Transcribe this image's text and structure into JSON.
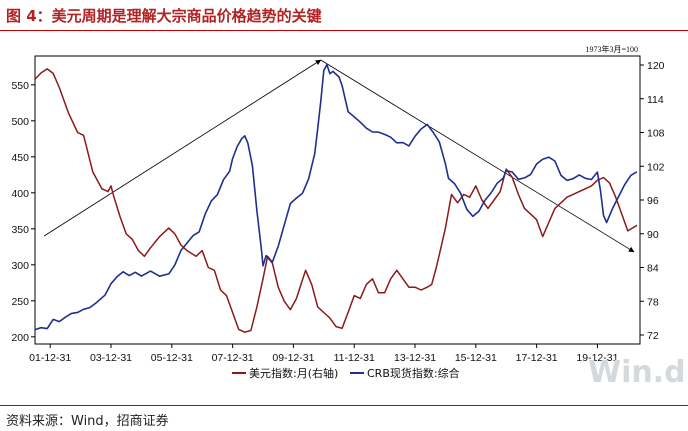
{
  "title": "图 4：美元周期是理解大宗商品价格趋势的关键",
  "source": "资料来源：Wind，招商证券",
  "watermark": "Win.d",
  "chart_data": {
    "type": "line",
    "base_note": "1973年3月=100",
    "x_ticks": [
      "01-12-31",
      "03-12-31",
      "05-12-31",
      "07-12-31",
      "09-12-31",
      "11-12-31",
      "13-12-31",
      "15-12-31",
      "17-12-31",
      "19-12-31"
    ],
    "x_range": [
      2001.5,
      2021.4
    ],
    "y_left": {
      "ticks": [
        200,
        250,
        300,
        350,
        400,
        450,
        500,
        550
      ],
      "range": [
        190,
        590
      ]
    },
    "y_right": {
      "ticks": [
        72,
        78,
        84,
        90,
        96,
        102,
        108,
        114,
        120
      ],
      "range": [
        70.4,
        121.6
      ]
    },
    "series": [
      {
        "name": "美元指数:月(右轴)",
        "axis": "right",
        "color": "#8b1a1a",
        "points": [
          [
            2001.5,
            117.5
          ],
          [
            2001.7,
            118.6
          ],
          [
            2001.9,
            119.3
          ],
          [
            2002.1,
            118.5
          ],
          [
            2002.3,
            116.0
          ],
          [
            2002.6,
            111.5
          ],
          [
            2002.9,
            108.0
          ],
          [
            2003.1,
            107.5
          ],
          [
            2003.4,
            101.0
          ],
          [
            2003.7,
            98.0
          ],
          [
            2003.9,
            97.5
          ],
          [
            2004.0,
            98.5
          ],
          [
            2004.1,
            96.5
          ],
          [
            2004.3,
            93.0
          ],
          [
            2004.5,
            90.0
          ],
          [
            2004.7,
            89.0
          ],
          [
            2004.9,
            87.0
          ],
          [
            2005.1,
            86.0
          ],
          [
            2005.3,
            87.5
          ],
          [
            2005.6,
            89.5
          ],
          [
            2005.9,
            91.0
          ],
          [
            2006.1,
            90.0
          ],
          [
            2006.3,
            88.0
          ],
          [
            2006.5,
            87.0
          ],
          [
            2006.8,
            86.0
          ],
          [
            2007.0,
            87.0
          ],
          [
            2007.2,
            84.0
          ],
          [
            2007.4,
            83.5
          ],
          [
            2007.6,
            80.0
          ],
          [
            2007.8,
            79.0
          ],
          [
            2008.0,
            76.0
          ],
          [
            2008.2,
            73.0
          ],
          [
            2008.4,
            72.5
          ],
          [
            2008.6,
            72.8
          ],
          [
            2008.8,
            77.0
          ],
          [
            2009.0,
            82.0
          ],
          [
            2009.15,
            86.0
          ],
          [
            2009.3,
            85.0
          ],
          [
            2009.5,
            80.5
          ],
          [
            2009.7,
            78.0
          ],
          [
            2009.9,
            76.5
          ],
          [
            2010.1,
            78.5
          ],
          [
            2010.25,
            81.0
          ],
          [
            2010.4,
            83.5
          ],
          [
            2010.6,
            81.0
          ],
          [
            2010.8,
            77.0
          ],
          [
            2011.0,
            76.0
          ],
          [
            2011.2,
            75.0
          ],
          [
            2011.4,
            73.5
          ],
          [
            2011.6,
            73.2
          ],
          [
            2011.8,
            76.0
          ],
          [
            2012.0,
            79.0
          ],
          [
            2012.2,
            78.5
          ],
          [
            2012.4,
            81.0
          ],
          [
            2012.6,
            82.0
          ],
          [
            2012.8,
            79.5
          ],
          [
            2013.0,
            79.5
          ],
          [
            2013.2,
            82.0
          ],
          [
            2013.4,
            83.5
          ],
          [
            2013.6,
            82.0
          ],
          [
            2013.8,
            80.5
          ],
          [
            2014.0,
            80.5
          ],
          [
            2014.2,
            80.0
          ],
          [
            2014.4,
            80.5
          ],
          [
            2014.55,
            81.0
          ],
          [
            2014.7,
            84.0
          ],
          [
            2014.85,
            87.5
          ],
          [
            2015.0,
            91.0
          ],
          [
            2015.2,
            97.0
          ],
          [
            2015.4,
            95.5
          ],
          [
            2015.6,
            97.0
          ],
          [
            2015.8,
            96.5
          ],
          [
            2016.0,
            98.5
          ],
          [
            2016.2,
            96.0
          ],
          [
            2016.4,
            94.5
          ],
          [
            2016.6,
            96.0
          ],
          [
            2016.8,
            97.5
          ],
          [
            2017.0,
            101.5
          ],
          [
            2017.2,
            100.0
          ],
          [
            2017.4,
            97.0
          ],
          [
            2017.6,
            94.5
          ],
          [
            2017.8,
            93.5
          ],
          [
            2018.0,
            92.5
          ],
          [
            2018.2,
            89.5
          ],
          [
            2018.4,
            92.0
          ],
          [
            2018.6,
            94.5
          ],
          [
            2018.8,
            95.5
          ],
          [
            2019.0,
            96.5
          ],
          [
            2019.2,
            97.0
          ],
          [
            2019.4,
            97.5
          ],
          [
            2019.6,
            98.0
          ],
          [
            2019.8,
            98.5
          ],
          [
            2020.0,
            99.5
          ],
          [
            2020.2,
            100.0
          ],
          [
            2020.4,
            99.0
          ],
          [
            2020.6,
            96.5
          ],
          [
            2020.8,
            93.5
          ],
          [
            2021.0,
            90.5
          ],
          [
            2021.3,
            91.5
          ]
        ]
      },
      {
        "name": "CRB现货指数:综合",
        "axis": "left",
        "color": "#1f2f8f",
        "points": [
          [
            2001.5,
            210
          ],
          [
            2001.7,
            213
          ],
          [
            2001.9,
            212
          ],
          [
            2002.1,
            225
          ],
          [
            2002.3,
            222
          ],
          [
            2002.5,
            228
          ],
          [
            2002.7,
            233
          ],
          [
            2002.9,
            234
          ],
          [
            2003.1,
            238
          ],
          [
            2003.3,
            240
          ],
          [
            2003.5,
            246
          ],
          [
            2003.8,
            257
          ],
          [
            2004.0,
            273
          ],
          [
            2004.2,
            283
          ],
          [
            2004.4,
            290
          ],
          [
            2004.6,
            285
          ],
          [
            2004.8,
            290
          ],
          [
            2005.0,
            285
          ],
          [
            2005.3,
            292
          ],
          [
            2005.6,
            285
          ],
          [
            2005.9,
            288
          ],
          [
            2006.1,
            300
          ],
          [
            2006.3,
            320
          ],
          [
            2006.5,
            330
          ],
          [
            2006.7,
            340
          ],
          [
            2006.9,
            345
          ],
          [
            2007.1,
            370
          ],
          [
            2007.3,
            388
          ],
          [
            2007.5,
            397
          ],
          [
            2007.7,
            418
          ],
          [
            2007.9,
            430
          ],
          [
            2008.0,
            448
          ],
          [
            2008.15,
            465
          ],
          [
            2008.3,
            476
          ],
          [
            2008.4,
            480
          ],
          [
            2008.5,
            470
          ],
          [
            2008.65,
            438
          ],
          [
            2008.8,
            375
          ],
          [
            2008.95,
            320
          ],
          [
            2009.0,
            298
          ],
          [
            2009.1,
            312
          ],
          [
            2009.3,
            302
          ],
          [
            2009.5,
            325
          ],
          [
            2009.7,
            355
          ],
          [
            2009.9,
            385
          ],
          [
            2010.1,
            393
          ],
          [
            2010.3,
            400
          ],
          [
            2010.5,
            420
          ],
          [
            2010.7,
            455
          ],
          [
            2010.8,
            490
          ],
          [
            2010.9,
            528
          ],
          [
            2011.0,
            570
          ],
          [
            2011.1,
            578
          ],
          [
            2011.2,
            565
          ],
          [
            2011.3,
            568
          ],
          [
            2011.5,
            560
          ],
          [
            2011.6,
            548
          ],
          [
            2011.8,
            512
          ],
          [
            2012.0,
            505
          ],
          [
            2012.2,
            498
          ],
          [
            2012.4,
            490
          ],
          [
            2012.6,
            485
          ],
          [
            2012.8,
            485
          ],
          [
            2013.0,
            482
          ],
          [
            2013.2,
            478
          ],
          [
            2013.4,
            470
          ],
          [
            2013.6,
            470
          ],
          [
            2013.8,
            465
          ],
          [
            2014.0,
            478
          ],
          [
            2014.2,
            488
          ],
          [
            2014.4,
            494
          ],
          [
            2014.6,
            483
          ],
          [
            2014.8,
            470
          ],
          [
            2015.0,
            440
          ],
          [
            2015.1,
            420
          ],
          [
            2015.3,
            413
          ],
          [
            2015.5,
            400
          ],
          [
            2015.7,
            378
          ],
          [
            2015.9,
            368
          ],
          [
            2016.1,
            375
          ],
          [
            2016.3,
            390
          ],
          [
            2016.5,
            400
          ],
          [
            2016.7,
            413
          ],
          [
            2016.9,
            420
          ],
          [
            2017.0,
            430
          ],
          [
            2017.2,
            428
          ],
          [
            2017.4,
            418
          ],
          [
            2017.6,
            420
          ],
          [
            2017.8,
            425
          ],
          [
            2018.0,
            440
          ],
          [
            2018.2,
            447
          ],
          [
            2018.4,
            450
          ],
          [
            2018.6,
            445
          ],
          [
            2018.8,
            425
          ],
          [
            2019.0,
            418
          ],
          [
            2019.2,
            420
          ],
          [
            2019.4,
            425
          ],
          [
            2019.6,
            420
          ],
          [
            2019.8,
            418
          ],
          [
            2020.0,
            428
          ],
          [
            2020.1,
            402
          ],
          [
            2020.2,
            368
          ],
          [
            2020.3,
            358
          ],
          [
            2020.5,
            378
          ],
          [
            2020.7,
            395
          ],
          [
            2020.9,
            412
          ],
          [
            2021.1,
            425
          ],
          [
            2021.3,
            430
          ]
        ]
      }
    ]
  }
}
